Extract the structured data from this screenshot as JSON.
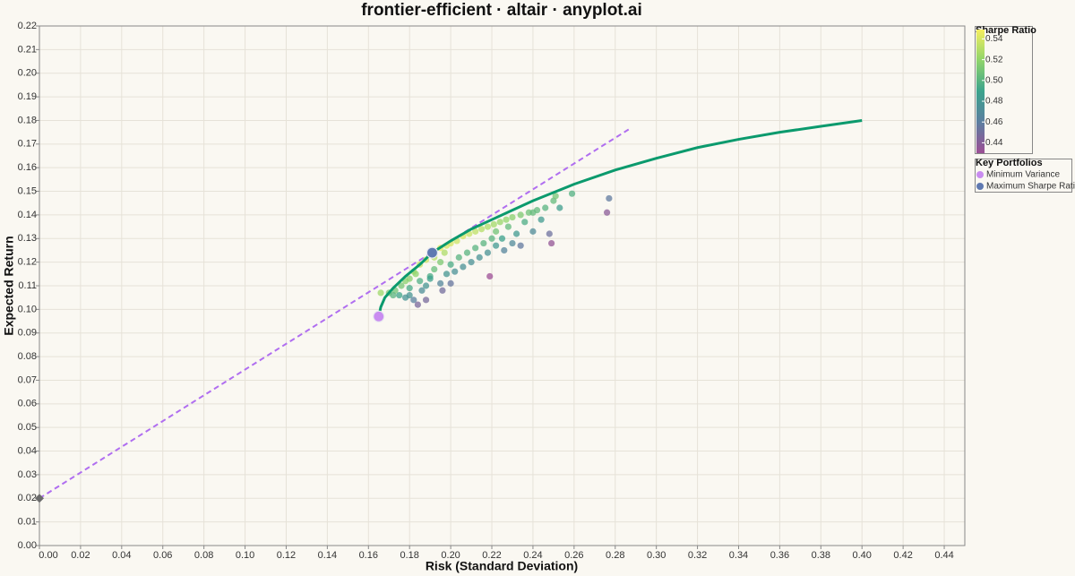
{
  "chart_data": {
    "type": "scatter",
    "title": "frontier-efficient · altair · anyplot.ai",
    "x_label": "Risk (Standard Deviation)",
    "y_label": "Expected Return",
    "xlim": [
      0,
      0.45
    ],
    "ylim": [
      0,
      0.22
    ],
    "xticks": [
      {
        "value": 0,
        "label": "0.00"
      },
      {
        "value": 0.02,
        "label": "0.02"
      },
      {
        "value": 0.04,
        "label": "0.04"
      },
      {
        "value": 0.06,
        "label": "0.06"
      },
      {
        "value": 0.08,
        "label": "0.08"
      },
      {
        "value": 0.1,
        "label": "0.10"
      },
      {
        "value": 0.12,
        "label": "0.12"
      },
      {
        "value": 0.14,
        "label": "0.14"
      },
      {
        "value": 0.16,
        "label": "0.16"
      },
      {
        "value": 0.18,
        "label": "0.18"
      },
      {
        "value": 0.2,
        "label": "0.20"
      },
      {
        "value": 0.22,
        "label": "0.22"
      },
      {
        "value": 0.24,
        "label": "0.24"
      },
      {
        "value": 0.26,
        "label": "0.26"
      },
      {
        "value": 0.28,
        "label": "0.28"
      },
      {
        "value": 0.3,
        "label": "0.30"
      },
      {
        "value": 0.32,
        "label": "0.32"
      },
      {
        "value": 0.34,
        "label": "0.34"
      },
      {
        "value": 0.36,
        "label": "0.36"
      },
      {
        "value": 0.38,
        "label": "0.38"
      },
      {
        "value": 0.4,
        "label": "0.40"
      },
      {
        "value": 0.42,
        "label": "0.42"
      },
      {
        "value": 0.44,
        "label": "0.44"
      }
    ],
    "yticks": [
      {
        "value": 0,
        "label": "0.00"
      },
      {
        "value": 0.01,
        "label": "0.01"
      },
      {
        "value": 0.02,
        "label": "0.02"
      },
      {
        "value": 0.03,
        "label": "0.03"
      },
      {
        "value": 0.04,
        "label": "0.04"
      },
      {
        "value": 0.05,
        "label": "0.05"
      },
      {
        "value": 0.06,
        "label": "0.06"
      },
      {
        "value": 0.07,
        "label": "0.07"
      },
      {
        "value": 0.08,
        "label": "0.08"
      },
      {
        "value": 0.09,
        "label": "0.09"
      },
      {
        "value": 0.1,
        "label": "0.10"
      },
      {
        "value": 0.11,
        "label": "0.11"
      },
      {
        "value": 0.12,
        "label": "0.12"
      },
      {
        "value": 0.13,
        "label": "0.13"
      },
      {
        "value": 0.14,
        "label": "0.14"
      },
      {
        "value": 0.15,
        "label": "0.15"
      },
      {
        "value": 0.16,
        "label": "0.16"
      },
      {
        "value": 0.17,
        "label": "0.17"
      },
      {
        "value": 0.18,
        "label": "0.18"
      },
      {
        "value": 0.19,
        "label": "0.19"
      },
      {
        "value": 0.2,
        "label": "0.20"
      },
      {
        "value": 0.21,
        "label": "0.21"
      },
      {
        "value": 0.22,
        "label": "0.22"
      }
    ],
    "grid": true,
    "portfolios": {
      "x": [
        0.178,
        0.182,
        0.185,
        0.188,
        0.192,
        0.195,
        0.198,
        0.2,
        0.203,
        0.206,
        0.209,
        0.212,
        0.215,
        0.218,
        0.221,
        0.224,
        0.227,
        0.23,
        0.234,
        0.238,
        0.242,
        0.246,
        0.25,
        0.251,
        0.259,
        0.18,
        0.183,
        0.176,
        0.173,
        0.17,
        0.175,
        0.18,
        0.182,
        0.184,
        0.188,
        0.18,
        0.185,
        0.188,
        0.19,
        0.192,
        0.195,
        0.195,
        0.198,
        0.2,
        0.202,
        0.204,
        0.206,
        0.208,
        0.21,
        0.212,
        0.214,
        0.216,
        0.218,
        0.219,
        0.22,
        0.222,
        0.225,
        0.228,
        0.23,
        0.232,
        0.236,
        0.24,
        0.244,
        0.248,
        0.249,
        0.276,
        0.277,
        0.196,
        0.2,
        0.178,
        0.172,
        0.166,
        0.226,
        0.222,
        0.234,
        0.24,
        0.253,
        0.192,
        0.197,
        0.19,
        0.186
      ],
      "y": [
        0.112,
        0.116,
        0.119,
        0.121,
        0.123,
        0.126,
        0.127,
        0.128,
        0.129,
        0.131,
        0.132,
        0.133,
        0.134,
        0.135,
        0.136,
        0.137,
        0.138,
        0.139,
        0.14,
        0.141,
        0.142,
        0.143,
        0.146,
        0.148,
        0.149,
        0.113,
        0.115,
        0.11,
        0.108,
        0.107,
        0.106,
        0.106,
        0.104,
        0.102,
        0.104,
        0.109,
        0.112,
        0.11,
        0.114,
        0.117,
        0.12,
        0.111,
        0.115,
        0.119,
        0.116,
        0.122,
        0.118,
        0.124,
        0.12,
        0.126,
        0.122,
        0.128,
        0.124,
        0.114,
        0.13,
        0.133,
        0.13,
        0.135,
        0.128,
        0.132,
        0.137,
        0.133,
        0.138,
        0.132,
        0.128,
        0.141,
        0.147,
        0.108,
        0.111,
        0.105,
        0.106,
        0.107,
        0.125,
        0.127,
        0.127,
        0.141,
        0.143,
        0.122,
        0.124,
        0.113,
        0.108
      ],
      "sharpe": [
        0.517,
        0.527,
        0.535,
        0.537,
        0.536,
        0.544,
        0.54,
        0.54,
        0.537,
        0.539,
        0.536,
        0.533,
        0.53,
        0.528,
        0.525,
        0.522,
        0.52,
        0.517,
        0.513,
        0.508,
        0.504,
        0.5,
        0.504,
        0.51,
        0.498,
        0.517,
        0.519,
        0.511,
        0.509,
        0.512,
        0.491,
        0.478,
        0.462,
        0.446,
        0.447,
        0.494,
        0.497,
        0.479,
        0.495,
        0.505,
        0.513,
        0.467,
        0.48,
        0.495,
        0.475,
        0.5,
        0.476,
        0.5,
        0.476,
        0.5,
        0.477,
        0.5,
        0.477,
        0.429,
        0.5,
        0.509,
        0.489,
        0.504,
        0.47,
        0.483,
        0.496,
        0.471,
        0.484,
        0.452,
        0.434,
        0.438,
        0.458,
        0.449,
        0.455,
        0.478,
        0.5,
        0.524,
        0.465,
        0.482,
        0.457,
        0.504,
        0.486,
        0.531,
        0.528,
        0.489,
        0.473
      ]
    },
    "frontier": {
      "color": "#0b9a6d",
      "x": [
        0.165,
        0.166,
        0.168,
        0.172,
        0.178,
        0.185,
        0.191,
        0.2,
        0.21,
        0.22,
        0.23,
        0.24,
        0.25,
        0.26,
        0.28,
        0.3,
        0.32,
        0.34,
        0.36,
        0.38,
        0.4
      ],
      "y": [
        0.097,
        0.101,
        0.105,
        0.109,
        0.114,
        0.119,
        0.124,
        0.129,
        0.134,
        0.138,
        0.142,
        0.146,
        0.1495,
        0.153,
        0.159,
        0.164,
        0.1685,
        0.172,
        0.175,
        0.1775,
        0.18
      ]
    },
    "capital_market_line": {
      "color": "#b06ef0",
      "x": [
        0,
        0.288
      ],
      "y": [
        0.02,
        0.177
      ]
    },
    "risk_free": {
      "color": "#6b6b6b",
      "x": 0,
      "y": 0.02
    },
    "key_portfolios_title": "Key Portfolios",
    "key_portfolios": [
      {
        "name": "Minimum Variance",
        "color": "#c98cf0",
        "x": 0.165,
        "y": 0.097
      },
      {
        "name": "Maximum Sharpe Ratio",
        "color": "#5f79b1",
        "x": 0.191,
        "y": 0.124
      }
    ],
    "colorbar_title": "Sharpe Ratio",
    "clim": [
      0.43,
      0.549
    ],
    "colorscale": [
      "#9c4f95",
      "#5c7ea0",
      "#3ba38c",
      "#8fd46b",
      "#f5ee60"
    ],
    "colorbar_ticks": [
      0.44,
      0.46,
      0.48,
      {
        "value": 0.5,
        "label": "0.50"
      },
      0.52,
      0.54
    ]
  }
}
